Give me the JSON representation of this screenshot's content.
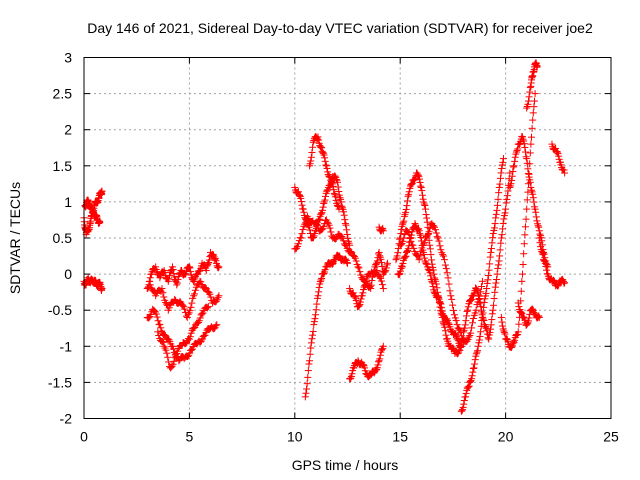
{
  "chart_data": {
    "type": "scatter",
    "title": "Day 146 of 2021, Sidereal Day-to-day VTEC variation (SDTVAR) for receiver joe2",
    "xlabel": "GPS time / hours",
    "ylabel": "SDTVAR / TECUs",
    "xlim": [
      0,
      25
    ],
    "ylim": [
      -2,
      3
    ],
    "xticks": [
      0,
      5,
      10,
      15,
      20,
      25
    ],
    "xtick_labels": [
      "0",
      "5",
      "10",
      "15",
      "20",
      "25"
    ],
    "yticks": [
      -2,
      -1.5,
      -1,
      -0.5,
      0,
      0.5,
      1,
      1.5,
      2,
      2.5,
      3
    ],
    "ytick_labels": [
      "-2",
      "-1.5",
      "-1",
      "-0.5",
      "0",
      "0.5",
      "1",
      "1.5",
      "2",
      "2.5",
      "3"
    ],
    "grid": true,
    "marker": "+",
    "color": "#ff0000",
    "series": [
      {
        "name": "a1",
        "x": [
          0.0,
          0.1,
          0.2,
          0.3,
          0.4,
          0.5,
          0.6,
          0.7,
          0.8,
          0.85
        ],
        "y": [
          0.78,
          0.55,
          0.62,
          0.7,
          0.85,
          0.95,
          1.0,
          1.05,
          1.12,
          1.15
        ]
      },
      {
        "name": "a2",
        "x": [
          0.05,
          0.15,
          0.25,
          0.35,
          0.45,
          0.55,
          0.65,
          0.75
        ],
        "y": [
          0.95,
          1.0,
          0.98,
          0.9,
          0.85,
          0.8,
          0.75,
          0.72
        ]
      },
      {
        "name": "a3",
        "x": [
          0.0,
          0.1,
          0.2,
          0.3,
          0.4,
          0.5,
          0.6,
          0.7,
          0.8,
          0.85
        ],
        "y": [
          -0.1,
          -0.15,
          -0.05,
          -0.12,
          -0.08,
          -0.1,
          -0.15,
          -0.12,
          -0.18,
          -0.2
        ]
      },
      {
        "name": "b1",
        "x": [
          3.0,
          3.2,
          3.4,
          3.6,
          3.8,
          4.0,
          4.2,
          4.4,
          4.6,
          4.8,
          5.0,
          5.2,
          5.4,
          5.6,
          5.8,
          6.0,
          6.2,
          6.4
        ],
        "y": [
          -0.2,
          0.0,
          0.1,
          -0.05,
          0.05,
          -0.1,
          0.1,
          -0.15,
          0.05,
          0.0,
          0.1,
          -0.1,
          0.0,
          0.15,
          0.05,
          0.3,
          0.2,
          0.1
        ]
      },
      {
        "name": "b2",
        "x": [
          3.0,
          3.3,
          3.6,
          3.9,
          4.2,
          4.5,
          4.8,
          5.1,
          5.4,
          5.7,
          6.0,
          6.3
        ],
        "y": [
          -0.6,
          -0.5,
          -0.7,
          -0.9,
          -1.0,
          -1.2,
          -1.15,
          -1.05,
          -0.95,
          -0.85,
          -0.75,
          -0.7
        ]
      },
      {
        "name": "b3",
        "x": [
          3.1,
          3.4,
          3.7,
          4.0,
          4.3,
          4.6,
          4.9,
          5.2,
          5.5,
          5.8,
          6.1,
          6.4
        ],
        "y": [
          -0.1,
          -0.3,
          -0.2,
          -0.5,
          -0.35,
          -0.4,
          -0.6,
          -0.3,
          -0.1,
          -0.2,
          -0.4,
          -0.3
        ]
      },
      {
        "name": "b4",
        "x": [
          3.5,
          3.8,
          4.1,
          4.4,
          4.7,
          5.0,
          5.3,
          5.6,
          5.9
        ],
        "y": [
          -0.8,
          -1.0,
          -1.3,
          -1.1,
          -0.95,
          -0.9,
          -0.7,
          -0.55,
          -0.45
        ]
      },
      {
        "name": "c1",
        "x": [
          10.0,
          10.2,
          10.4,
          10.6,
          10.8,
          11.0,
          11.2,
          11.4,
          11.6,
          11.8,
          12.0,
          12.2,
          12.4,
          12.6
        ],
        "y": [
          1.2,
          1.1,
          0.9,
          0.7,
          0.5,
          0.6,
          0.8,
          1.0,
          1.2,
          1.35,
          1.3,
          1.0,
          0.7,
          0.4
        ]
      },
      {
        "name": "c2",
        "x": [
          10.7,
          10.9,
          11.1,
          11.3,
          11.5,
          11.7,
          11.9,
          12.1
        ],
        "y": [
          1.5,
          1.85,
          1.9,
          1.7,
          1.5,
          1.3,
          1.1,
          0.9
        ]
      },
      {
        "name": "c3",
        "x": [
          10.0,
          10.3,
          10.6,
          10.9,
          11.2,
          11.5,
          11.8,
          12.1,
          12.4,
          12.7,
          13.0,
          13.3,
          13.6,
          13.9,
          14.2
        ],
        "y": [
          0.35,
          0.5,
          0.8,
          0.7,
          0.6,
          0.75,
          0.5,
          0.55,
          0.4,
          0.3,
          0.1,
          -0.1,
          0.0,
          0.05,
          -0.2
        ]
      },
      {
        "name": "c4",
        "x": [
          10.5,
          10.7,
          10.9,
          11.1,
          11.3,
          11.5,
          11.7,
          11.9,
          12.1,
          12.3,
          12.5
        ],
        "y": [
          -1.7,
          -1.2,
          -0.7,
          -0.3,
          0.0,
          0.1,
          0.15,
          0.2,
          0.25,
          0.2,
          0.15
        ]
      },
      {
        "name": "c5",
        "x": [
          12.6,
          12.8,
          13.0,
          13.2,
          13.4,
          13.6,
          13.8,
          14.0,
          14.2,
          14.4
        ],
        "y": [
          -0.2,
          -0.3,
          -0.45,
          -0.3,
          -0.1,
          -0.2,
          0.1,
          0.3,
          0.0,
          0.15
        ]
      },
      {
        "name": "c6",
        "x": [
          12.6,
          12.8,
          13.0,
          13.2,
          13.4,
          13.6,
          13.8,
          14.0,
          14.2
        ],
        "y": [
          -1.45,
          -1.3,
          -1.2,
          -1.25,
          -1.38,
          -1.4,
          -1.35,
          -1.2,
          -1.0
        ]
      },
      {
        "name": "c7",
        "x": [
          14.0,
          14.2
        ],
        "y": [
          0.65,
          0.6
        ]
      },
      {
        "name": "d1",
        "x": [
          14.8,
          15.0,
          15.2,
          15.4,
          15.6,
          15.8,
          16.0,
          16.2,
          16.4,
          16.6,
          16.8,
          17.0,
          17.2,
          17.4,
          17.6,
          17.8,
          18.0
        ],
        "y": [
          0.2,
          0.5,
          0.8,
          1.1,
          1.3,
          1.4,
          1.2,
          0.9,
          0.4,
          0.0,
          -0.3,
          -0.6,
          -0.9,
          -1.0,
          -1.1,
          -1.05,
          -0.9
        ]
      },
      {
        "name": "d2",
        "x": [
          14.9,
          15.1,
          15.3,
          15.5,
          15.7,
          15.9,
          16.1,
          16.3,
          16.5,
          16.7,
          16.9,
          17.1,
          17.3,
          17.5,
          17.7,
          17.9
        ],
        "y": [
          0.0,
          0.1,
          0.3,
          0.5,
          0.7,
          0.6,
          0.3,
          0.1,
          -0.1,
          -0.3,
          -0.4,
          -0.6,
          -0.7,
          -0.8,
          -0.9,
          -1.0
        ]
      },
      {
        "name": "d3",
        "x": [
          15.0,
          15.3,
          15.6,
          15.9,
          16.2,
          16.5,
          16.8,
          17.1,
          17.4,
          17.7,
          18.0,
          18.3,
          18.6,
          18.9
        ],
        "y": [
          0.4,
          0.6,
          0.4,
          0.2,
          0.5,
          0.7,
          0.5,
          0.2,
          -0.3,
          -0.7,
          -0.95,
          -0.85,
          -0.5,
          -0.1
        ]
      },
      {
        "name": "e1",
        "x": [
          17.9,
          18.1,
          18.3,
          18.5,
          18.7,
          18.9,
          19.1,
          19.3,
          19.5,
          19.7,
          19.9
        ],
        "y": [
          -1.9,
          -1.7,
          -1.5,
          -1.3,
          -1.0,
          -0.6,
          -0.2,
          0.3,
          0.7,
          1.2,
          1.6
        ]
      },
      {
        "name": "e2",
        "x": [
          18.0,
          18.2,
          18.4,
          18.6,
          18.8,
          19.0,
          19.2,
          19.4,
          19.6,
          19.8,
          20.0,
          20.2
        ],
        "y": [
          -0.8,
          -0.5,
          -0.3,
          -0.2,
          -0.4,
          -0.7,
          -0.9,
          -0.5,
          0.0,
          0.5,
          0.9,
          1.4
        ]
      },
      {
        "name": "e3",
        "x": [
          19.8,
          20.0,
          20.2,
          20.4,
          20.6,
          20.8,
          21.0,
          21.2,
          21.4
        ],
        "y": [
          -0.6,
          -0.9,
          -1.0,
          -0.95,
          -0.8,
          0.0,
          0.9,
          1.8,
          2.5
        ]
      },
      {
        "name": "e4",
        "x": [
          20.2,
          20.4,
          20.6,
          20.8,
          21.0,
          21.2,
          21.4,
          21.6,
          21.8,
          22.0
        ],
        "y": [
          1.2,
          1.5,
          1.8,
          1.9,
          1.6,
          1.2,
          0.9,
          0.6,
          0.3,
          0.1
        ]
      },
      {
        "name": "e5",
        "x": [
          21.0,
          21.2,
          21.3,
          21.4,
          21.5
        ],
        "y": [
          2.3,
          2.6,
          2.8,
          2.9,
          2.88
        ]
      },
      {
        "name": "e6",
        "x": [
          20.6,
          20.8,
          21.0,
          21.2,
          21.4,
          21.6
        ],
        "y": [
          -0.4,
          -0.6,
          -0.7,
          -0.5,
          -0.55,
          -0.6
        ]
      },
      {
        "name": "e7",
        "x": [
          21.6,
          21.8,
          22.0,
          22.2,
          22.4,
          22.6,
          22.8
        ],
        "y": [
          0.5,
          0.2,
          0.0,
          -0.1,
          -0.15,
          -0.1,
          -0.12
        ]
      },
      {
        "name": "e8",
        "x": [
          22.2,
          22.4,
          22.6,
          22.8
        ],
        "y": [
          1.8,
          1.7,
          1.55,
          1.4
        ]
      }
    ]
  }
}
